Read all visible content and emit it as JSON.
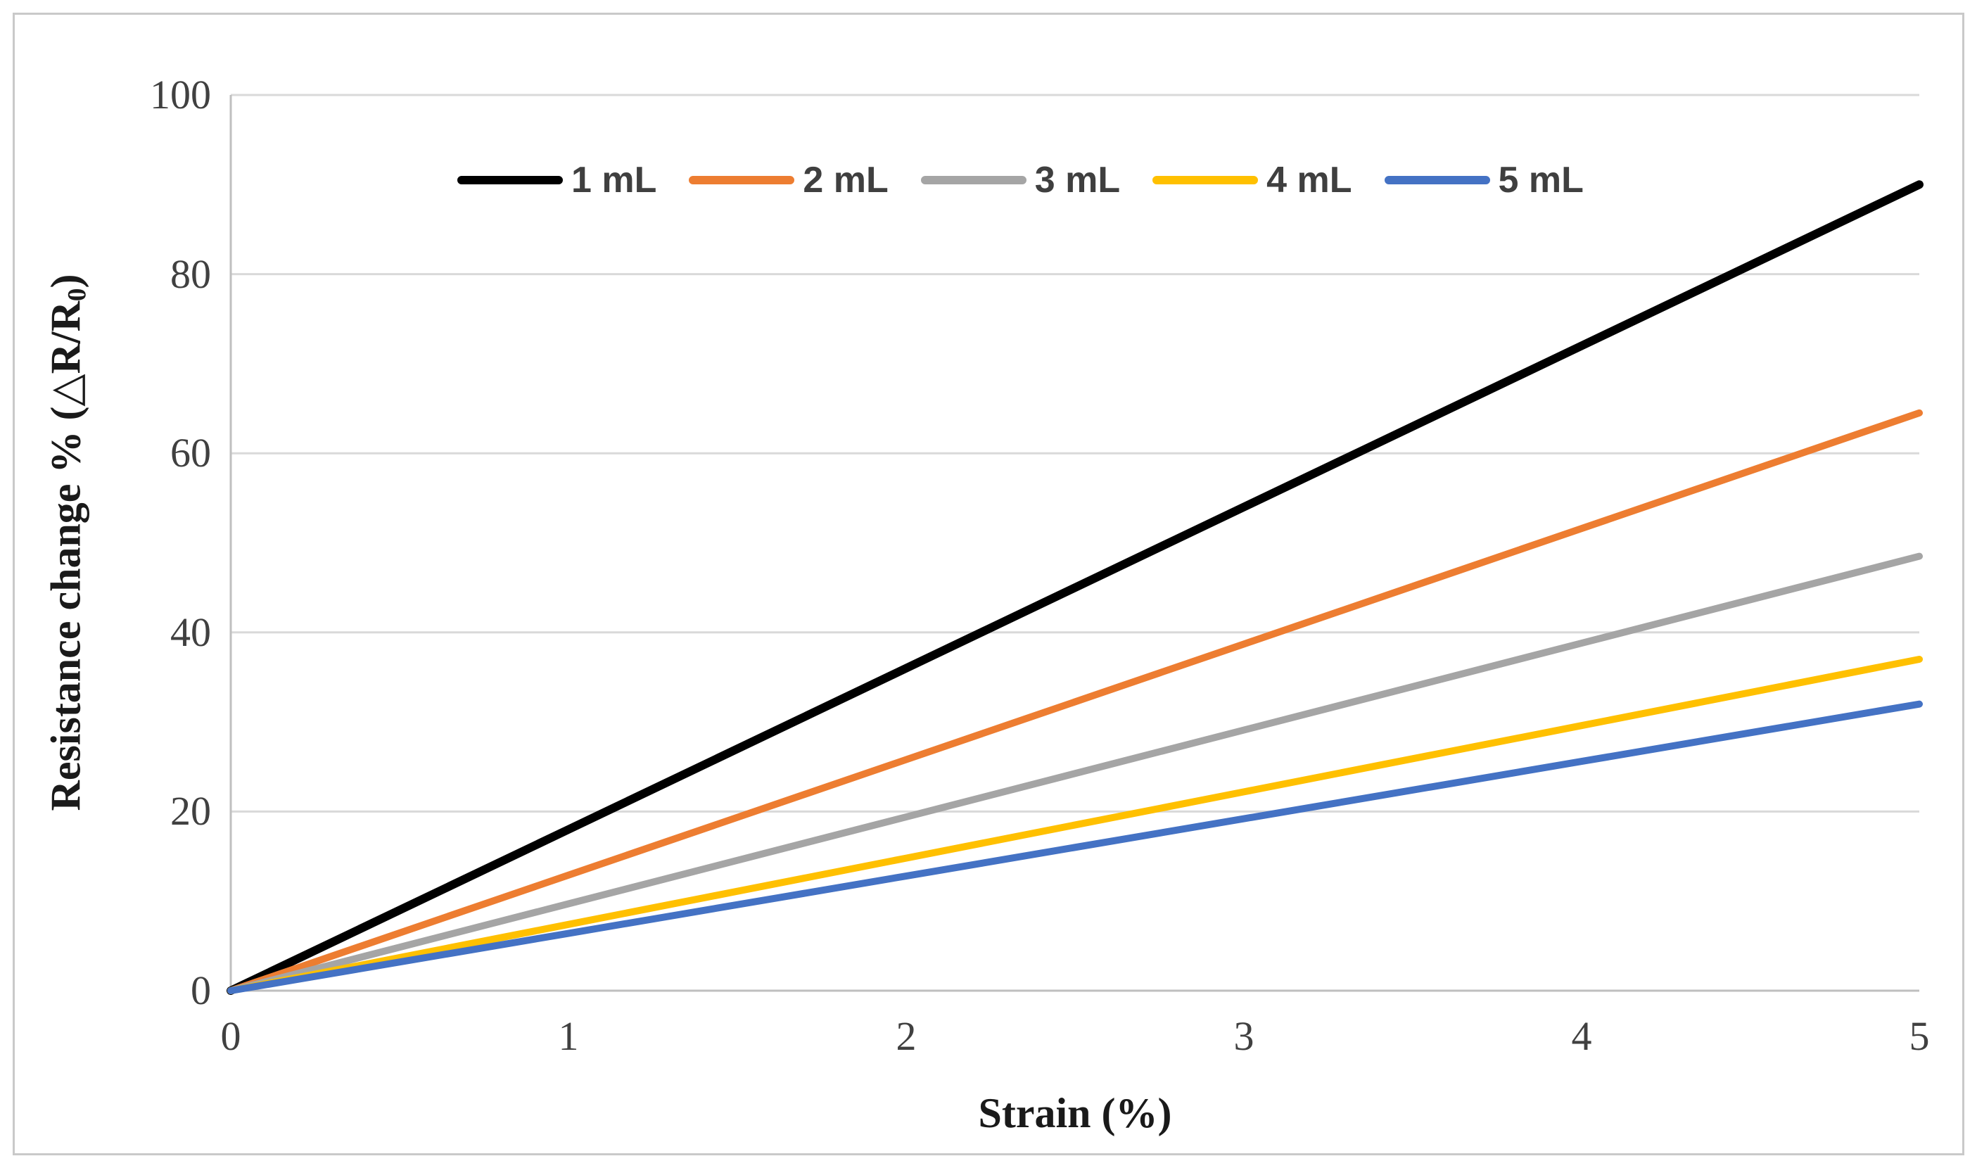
{
  "figure": {
    "background": "#ffffff",
    "border_color": "#c9c9c9"
  },
  "chart_data": {
    "type": "line",
    "x": [
      0,
      1,
      2,
      3,
      4,
      5
    ],
    "series": [
      {
        "name": "1 mL",
        "color": "#000000",
        "values": [
          0,
          18,
          36,
          54,
          72,
          90
        ]
      },
      {
        "name": "2 mL",
        "color": "#ED7D31",
        "values": [
          0,
          12.9,
          25.8,
          38.7,
          51.6,
          64.5
        ]
      },
      {
        "name": "3 mL",
        "color": "#A5A5A5",
        "values": [
          0,
          9.7,
          19.4,
          29.1,
          38.8,
          48.5
        ]
      },
      {
        "name": "4 mL",
        "color": "#FFC000",
        "values": [
          0,
          7.4,
          14.8,
          22.2,
          29.6,
          37
        ]
      },
      {
        "name": "5 mL",
        "color": "#4472C4",
        "values": [
          0,
          6.4,
          12.8,
          19.2,
          25.6,
          32
        ]
      }
    ],
    "title": "",
    "xlabel": "Strain (%)",
    "ylabel": "Resistance change % (△R/R₀)",
    "ylabel_parts": {
      "prefix": "Resistance change % (",
      "delta": "△",
      "ratio": "R/R",
      "sub": "0",
      "suffix": ")"
    },
    "xlim": [
      0,
      5
    ],
    "ylim": [
      0,
      100
    ],
    "xticks": [
      0,
      1,
      2,
      3,
      4,
      5
    ],
    "yticks": [
      0,
      20,
      40,
      60,
      80,
      100
    ],
    "grid": "horizontal-only",
    "legend_position": "top-center-inside",
    "colors": {
      "gridline": "#D9D9D9",
      "axis_line": "#BFBFBF",
      "tick_label": "#404040",
      "axis_title": "#1a1a1a",
      "legend_text": "#3f3f3f"
    }
  }
}
